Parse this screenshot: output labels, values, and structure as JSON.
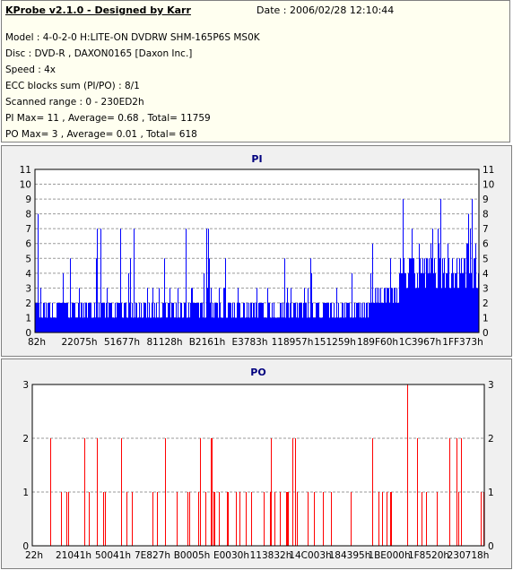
{
  "info": {
    "title": "KProbe v2.1.0 - Designed by Karr",
    "date": "Date : 2006/02/28 12:10:44",
    "model": "Model : 4-0-2-0 H:LITE-ON DVDRW SHM-165P6S MS0K",
    "disc": "Disc : DVD-R , DAXON0165 [Daxon Inc.]",
    "speed": "Speed : 4x",
    "ecc": "ECC blocks sum (PI/PO) : 8/1",
    "range": "Scanned range : 0 - 230ED2h",
    "pi": "PI Max= 11 , Average= 0.68 , Total= 11759",
    "po": "PO Max= 3 , Average= 0.01 , Total= 618"
  },
  "colors": {
    "pi_bar": "#0000ff",
    "po_bar": "#ff0000",
    "grid": "#9a9a9a",
    "title": "#00007f"
  },
  "chart_data": [
    {
      "type": "bar",
      "title": "PI",
      "ylim": [
        0,
        11
      ],
      "yticks": [
        0,
        1,
        2,
        3,
        4,
        5,
        6,
        7,
        8,
        9,
        10,
        11
      ],
      "xticks": [
        "82h",
        "22075h",
        "51677h",
        "81128h",
        "B2161h",
        "E3783h",
        "118957h",
        "151259h",
        "189F60h",
        "1C3967h",
        "1FF373h"
      ],
      "grid": true,
      "x_range_hex": [
        0,
        2289362
      ],
      "notable_peaks": [
        {
          "x_hex": "1C0000h",
          "y": 9
        },
        {
          "x_hex": "2280000h",
          "y": 9
        },
        {
          "x_hex": "30000h",
          "y": 8
        },
        {
          "x_hex": "D0000h",
          "y": 7
        },
        {
          "x_hex": "E0000h",
          "y": 7
        }
      ],
      "baseline_typical": 1
    },
    {
      "type": "bar",
      "title": "PO",
      "ylim": [
        0,
        3
      ],
      "yticks": [
        0,
        1,
        2,
        3
      ],
      "xticks": [
        "22h",
        "21041h",
        "50041h",
        "7E827h",
        "B0005h",
        "E0030h",
        "113832h",
        "14C003h",
        "184395h",
        "1BE000h",
        "1F8520h",
        "230718h"
      ],
      "grid": true,
      "x_range_hex": [
        0,
        2289362
      ],
      "notable_peaks": [
        {
          "x_hex": "1C3000h",
          "y": 3
        }
      ],
      "baseline_typical": 0
    }
  ]
}
